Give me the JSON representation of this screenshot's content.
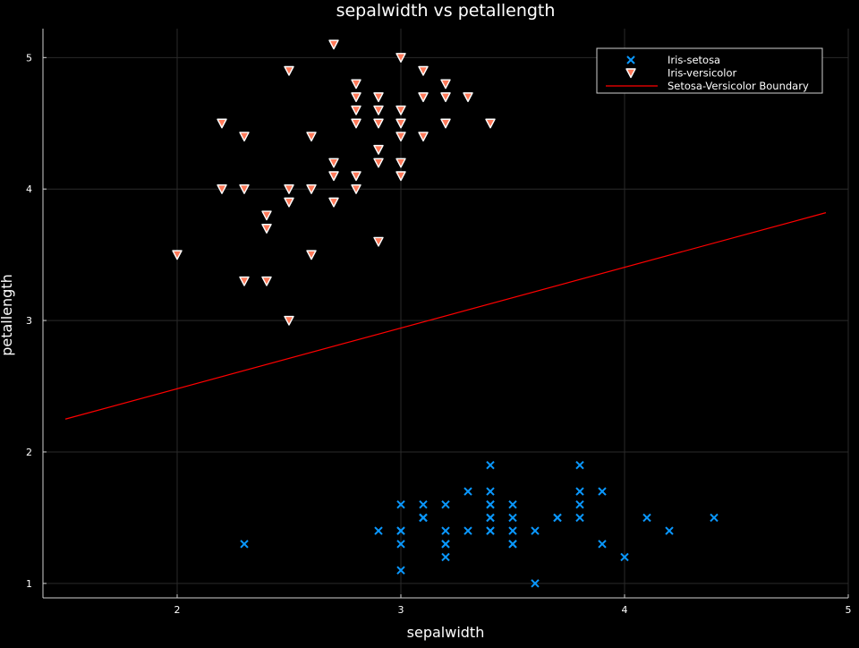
{
  "chart_data": {
    "type": "scatter",
    "title": "sepalwidth vs petallength",
    "xlabel": "sepalwidth",
    "ylabel": "petallength",
    "xlim": [
      1.4,
      5.0
    ],
    "ylim": [
      0.89,
      5.22
    ],
    "xticks": [
      "2",
      "3",
      "4",
      "5"
    ],
    "yticks": [
      "1",
      "2",
      "3",
      "4",
      "5"
    ],
    "grid": true,
    "legend_position": "top-right",
    "series": [
      {
        "name": "Iris-setosa",
        "marker": "x",
        "color": "#0a98ff",
        "points": [
          [
            2.3,
            1.3
          ],
          [
            2.9,
            1.4
          ],
          [
            3.0,
            1.4
          ],
          [
            3.0,
            1.4
          ],
          [
            3.0,
            1.6
          ],
          [
            3.0,
            1.3
          ],
          [
            3.0,
            1.1
          ],
          [
            3.1,
            1.6
          ],
          [
            3.1,
            1.5
          ],
          [
            3.1,
            1.5
          ],
          [
            3.1,
            1.5
          ],
          [
            3.2,
            1.6
          ],
          [
            3.2,
            1.4
          ],
          [
            3.2,
            1.3
          ],
          [
            3.2,
            1.3
          ],
          [
            3.2,
            1.2
          ],
          [
            3.3,
            1.7
          ],
          [
            3.3,
            1.4
          ],
          [
            3.4,
            1.9
          ],
          [
            3.4,
            1.7
          ],
          [
            3.4,
            1.6
          ],
          [
            3.4,
            1.6
          ],
          [
            3.4,
            1.5
          ],
          [
            3.4,
            1.5
          ],
          [
            3.4,
            1.4
          ],
          [
            3.4,
            1.4
          ],
          [
            3.5,
            1.6
          ],
          [
            3.5,
            1.5
          ],
          [
            3.5,
            1.4
          ],
          [
            3.5,
            1.3
          ],
          [
            3.5,
            1.3
          ],
          [
            3.6,
            1.4
          ],
          [
            3.6,
            1.0
          ],
          [
            3.7,
            1.5
          ],
          [
            3.7,
            1.5
          ],
          [
            3.8,
            1.9
          ],
          [
            3.8,
            1.7
          ],
          [
            3.8,
            1.6
          ],
          [
            3.8,
            1.5
          ],
          [
            3.9,
            1.7
          ],
          [
            3.9,
            1.3
          ],
          [
            4.0,
            1.2
          ],
          [
            4.1,
            1.5
          ],
          [
            4.2,
            1.4
          ],
          [
            4.4,
            1.5
          ]
        ]
      },
      {
        "name": "Iris-versicolor",
        "marker": "triangle-down",
        "color": "#ff7a5a",
        "points": [
          [
            2.0,
            3.5
          ],
          [
            2.2,
            4.5
          ],
          [
            2.2,
            4.0
          ],
          [
            2.3,
            4.4
          ],
          [
            2.3,
            4.0
          ],
          [
            2.3,
            3.3
          ],
          [
            2.4,
            3.8
          ],
          [
            2.4,
            3.7
          ],
          [
            2.4,
            3.3
          ],
          [
            2.5,
            4.9
          ],
          [
            2.5,
            4.0
          ],
          [
            2.5,
            3.9
          ],
          [
            2.5,
            3.0
          ],
          [
            2.6,
            4.4
          ],
          [
            2.6,
            4.0
          ],
          [
            2.6,
            3.5
          ],
          [
            2.7,
            5.1
          ],
          [
            2.7,
            4.2
          ],
          [
            2.7,
            4.1
          ],
          [
            2.7,
            3.9
          ],
          [
            2.8,
            4.8
          ],
          [
            2.8,
            4.7
          ],
          [
            2.8,
            4.6
          ],
          [
            2.8,
            4.5
          ],
          [
            2.8,
            4.1
          ],
          [
            2.8,
            4.0
          ],
          [
            2.9,
            4.7
          ],
          [
            2.9,
            4.6
          ],
          [
            2.9,
            4.5
          ],
          [
            2.9,
            4.3
          ],
          [
            2.9,
            4.2
          ],
          [
            2.9,
            3.6
          ],
          [
            3.0,
            5.0
          ],
          [
            3.0,
            4.6
          ],
          [
            3.0,
            4.5
          ],
          [
            3.0,
            4.4
          ],
          [
            3.0,
            4.2
          ],
          [
            3.0,
            4.1
          ],
          [
            3.1,
            4.9
          ],
          [
            3.1,
            4.7
          ],
          [
            3.1,
            4.4
          ],
          [
            3.2,
            4.8
          ],
          [
            3.2,
            4.7
          ],
          [
            3.2,
            4.5
          ],
          [
            3.3,
            4.7
          ],
          [
            3.4,
            4.5
          ]
        ]
      },
      {
        "name": "Setosa-Versicolor Boundary",
        "marker": "line",
        "color": "#ff0000",
        "points": [
          [
            1.5,
            2.25
          ],
          [
            4.9,
            3.82
          ]
        ]
      }
    ]
  }
}
